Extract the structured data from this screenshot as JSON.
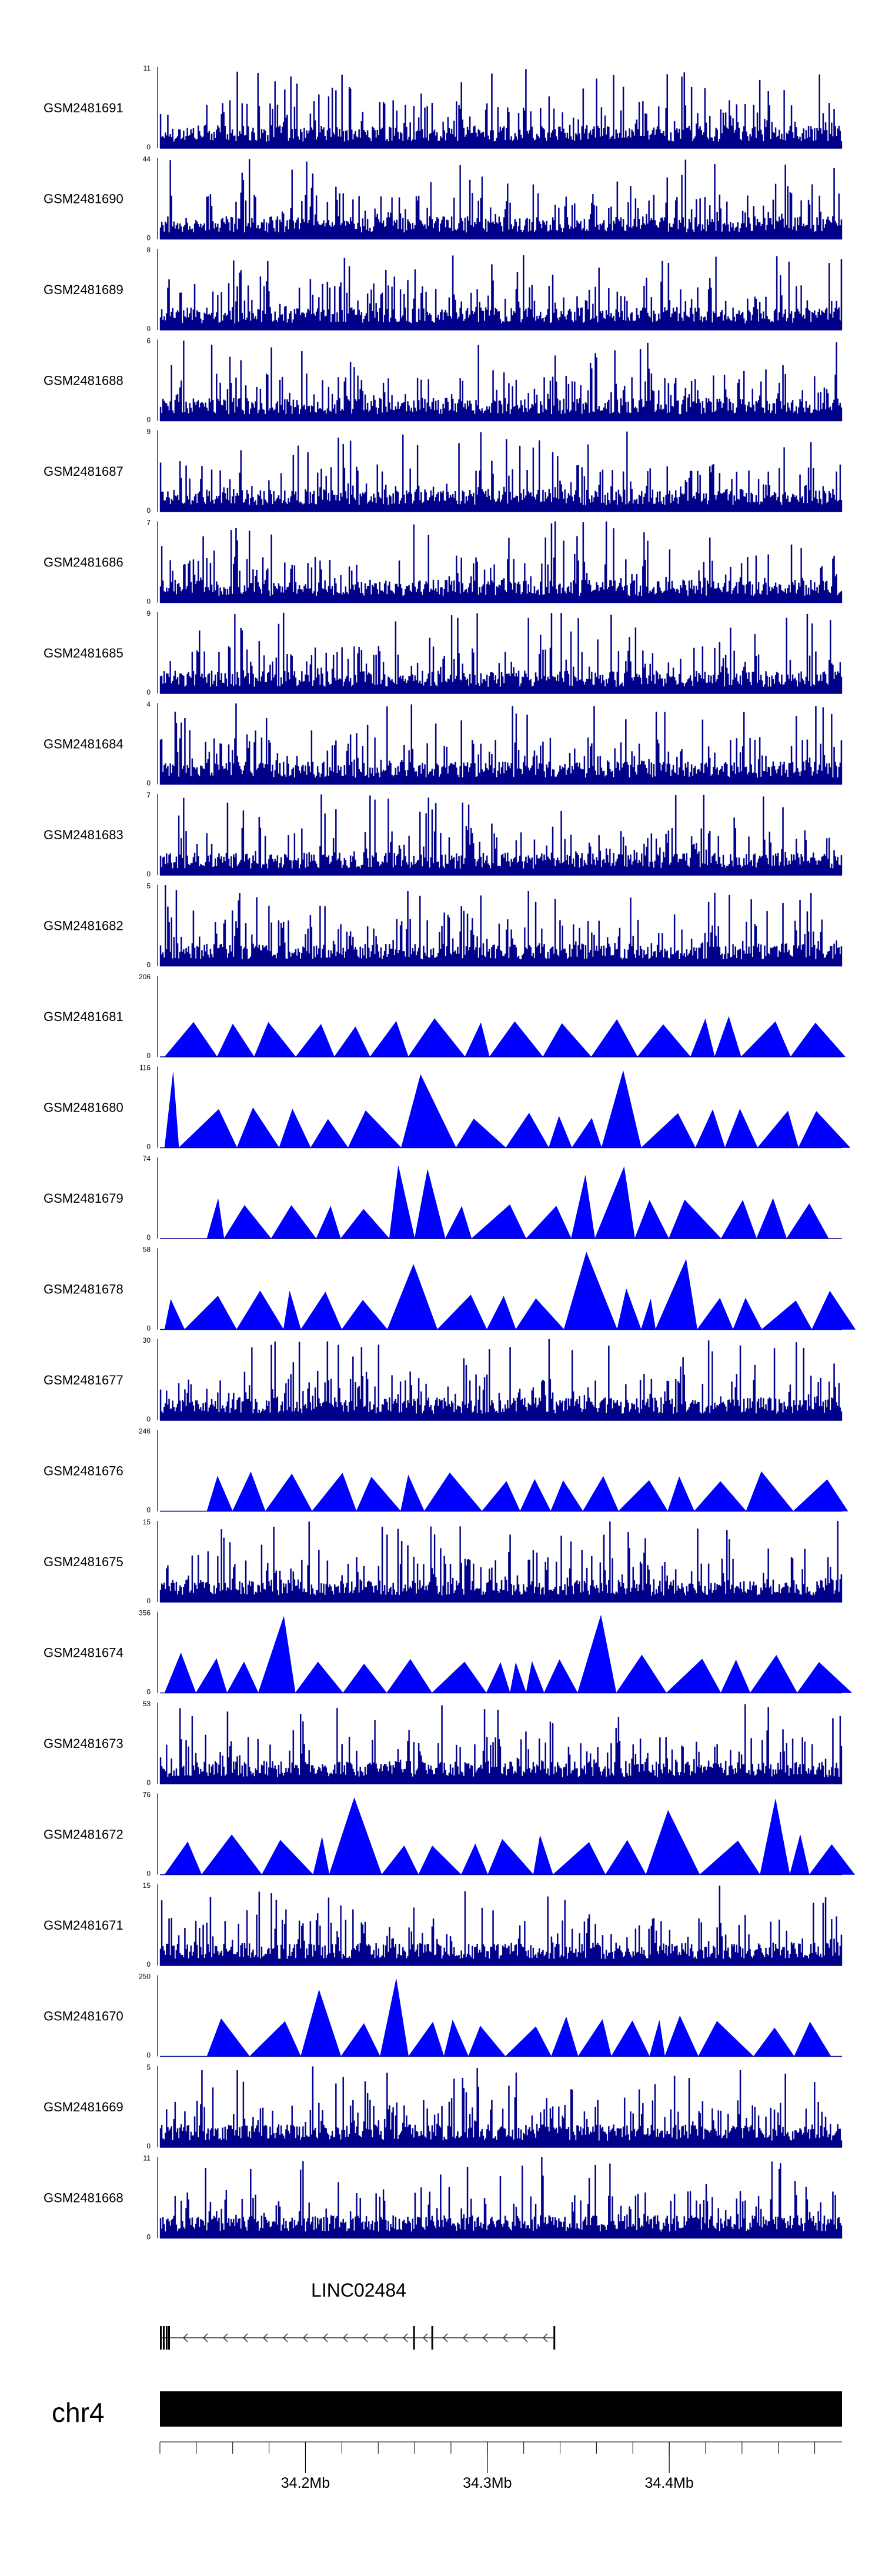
{
  "chart_data": {
    "type": "genome-browser-coverage",
    "region_start_mb": 34.12,
    "region_end_mb": 34.495,
    "colors": {
      "coverage": "#0000ff",
      "coverage_dense": "#00008b",
      "axis": "#000000",
      "ideogram": "#000000",
      "gene": "#333333"
    },
    "tracks": [
      {
        "name": "GSM2481691",
        "ymax": 11,
        "pattern": "dense"
      },
      {
        "name": "GSM2481690",
        "ymax": 44,
        "pattern": "dense"
      },
      {
        "name": "GSM2481689",
        "ymax": 8,
        "pattern": "dense"
      },
      {
        "name": "GSM2481688",
        "ymax": 6,
        "pattern": "dense"
      },
      {
        "name": "GSM2481687",
        "ymax": 9,
        "pattern": "dense"
      },
      {
        "name": "GSM2481686",
        "ymax": 7,
        "pattern": "dense"
      },
      {
        "name": "GSM2481685",
        "ymax": 9,
        "pattern": "dense"
      },
      {
        "name": "GSM2481684",
        "ymax": 4,
        "pattern": "dense"
      },
      {
        "name": "GSM2481683",
        "ymax": 7,
        "pattern": "dense"
      },
      {
        "name": "GSM2481682",
        "ymax": 5,
        "pattern": "dense"
      },
      {
        "name": "GSM2481681",
        "ymax": 206,
        "pattern": "sparse"
      },
      {
        "name": "GSM2481680",
        "ymax": 116,
        "pattern": "sparse"
      },
      {
        "name": "GSM2481679",
        "ymax": 74,
        "pattern": "sparse"
      },
      {
        "name": "GSM2481678",
        "ymax": 58,
        "pattern": "sparse"
      },
      {
        "name": "GSM2481677",
        "ymax": 30,
        "pattern": "dense"
      },
      {
        "name": "GSM2481676",
        "ymax": 246,
        "pattern": "sparse"
      },
      {
        "name": "GSM2481675",
        "ymax": 15,
        "pattern": "dense"
      },
      {
        "name": "GSM2481674",
        "ymax": 356,
        "pattern": "sparse"
      },
      {
        "name": "GSM2481673",
        "ymax": 53,
        "pattern": "dense"
      },
      {
        "name": "GSM2481672",
        "ymax": 76,
        "pattern": "sparse"
      },
      {
        "name": "GSM2481671",
        "ymax": 15,
        "pattern": "dense"
      },
      {
        "name": "GSM2481670",
        "ymax": 250,
        "pattern": "sparse"
      },
      {
        "name": "GSM2481669",
        "ymax": 5,
        "pattern": "dense"
      },
      {
        "name": "GSM2481668",
        "ymax": 11,
        "pattern": "dense"
      }
    ],
    "ymin_label": "0",
    "gene": {
      "name": "LINC02484",
      "start_mb": 34.12,
      "end_mb": 34.337,
      "strand": "-"
    },
    "chromosome": "chr4",
    "x_ticks": [
      {
        "position_mb": 34.2,
        "label": "34.2Mb"
      },
      {
        "position_mb": 34.3,
        "label": "34.3Mb"
      },
      {
        "position_mb": 34.4,
        "label": "34.4Mb"
      }
    ],
    "minor_tick_step_mb": 0.02
  }
}
